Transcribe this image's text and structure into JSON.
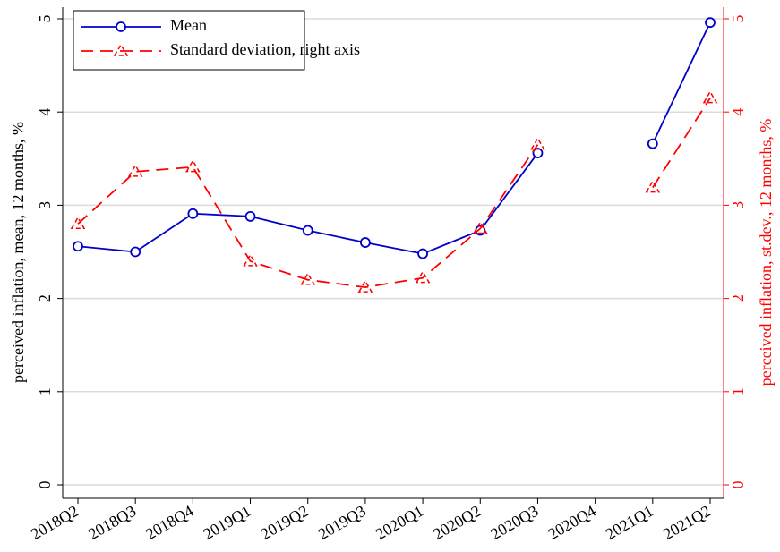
{
  "chart_data": {
    "type": "line",
    "categories": [
      "2018Q2",
      "2018Q3",
      "2018Q4",
      "2019Q1",
      "2019Q2",
      "2019Q3",
      "2020Q1",
      "2020Q2",
      "2020Q3",
      "2020Q4",
      "2021Q1",
      "2021Q2"
    ],
    "series": [
      {
        "name": "Mean",
        "color": "#0000cc",
        "values": [
          2.56,
          2.5,
          2.91,
          2.88,
          2.73,
          2.6,
          2.48,
          2.73,
          3.56,
          null,
          3.66,
          4.96
        ]
      },
      {
        "name": "Standard deviation, right axis",
        "color": "#ff0000",
        "axis": "y2",
        "values": [
          2.8,
          3.36,
          3.41,
          2.4,
          2.2,
          2.12,
          2.22,
          2.75,
          3.65,
          null,
          3.19,
          4.15
        ]
      }
    ],
    "y_label": "perceived inflation, mean, 12 months, %",
    "y2_label": "perceived inflation, st.dev., 12 months, %",
    "ylim": [
      0,
      5
    ],
    "yticks": [
      0,
      1,
      2,
      3,
      4,
      5
    ],
    "y2lim": [
      0,
      5
    ],
    "y2ticks": [
      0,
      1,
      2,
      3,
      4,
      5
    ],
    "grid": true,
    "legend": "upper left"
  }
}
